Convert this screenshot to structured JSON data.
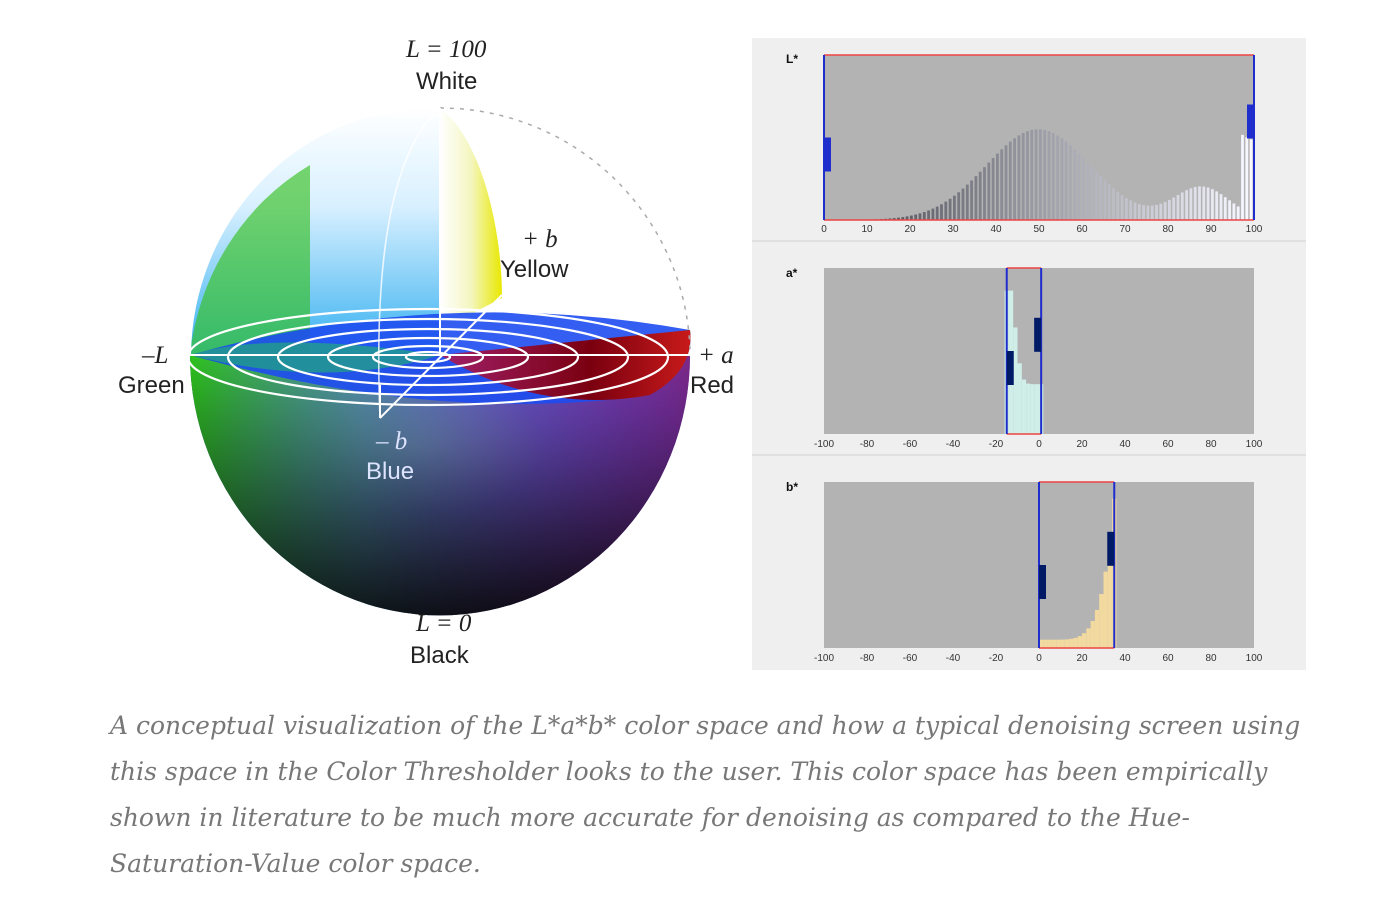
{
  "sphere": {
    "labels": {
      "top_l": "L = 100",
      "top_name": "White",
      "yellow_sym": "+ b",
      "yellow_name": "Yellow",
      "green_sym": "–L",
      "green_name": "Green",
      "red_sym": "+ a",
      "red_name": "Red",
      "blue_sym": "– b",
      "blue_name": "Blue",
      "bottom_l": "L = 0",
      "bottom_name": "Black"
    }
  },
  "thresholder": {
    "colors": {
      "plot_bg": "#b3b3b3",
      "panel_bg": "#efefef",
      "threshold_line": "#ee4444",
      "handle": "#1f2dcc",
      "handle_dark": "#001a66"
    },
    "panels": [
      {
        "title": "L*",
        "ticks": [
          "0",
          "10",
          "20",
          "30",
          "40",
          "50",
          "60",
          "70",
          "80",
          "90",
          "100"
        ],
        "range": [
          0,
          100
        ],
        "threshold": [
          0,
          100
        ],
        "histogram_peak_near": 50
      },
      {
        "title": "a*",
        "ticks": [
          "-100",
          "-80",
          "-60",
          "-40",
          "-20",
          "0",
          "20",
          "40",
          "60",
          "80",
          "100"
        ],
        "range": [
          -100,
          100
        ],
        "threshold": [
          -15,
          1
        ],
        "histogram_peak_near": -10
      },
      {
        "title": "b*",
        "ticks": [
          "-100",
          "-80",
          "-60",
          "-40",
          "-20",
          "0",
          "20",
          "40",
          "60",
          "80",
          "100"
        ],
        "range": [
          -100,
          100
        ],
        "threshold": [
          0,
          35
        ],
        "histogram_peak_near": 32
      }
    ]
  },
  "caption": "A conceptual visualization of the L*a*b* color space and how a typical denoising screen using this space in the Color Thresholder looks to the user. This color space has been empirically shown in literature to be much more accurate for denoising as compared to the Hue-Saturation-Value color space."
}
